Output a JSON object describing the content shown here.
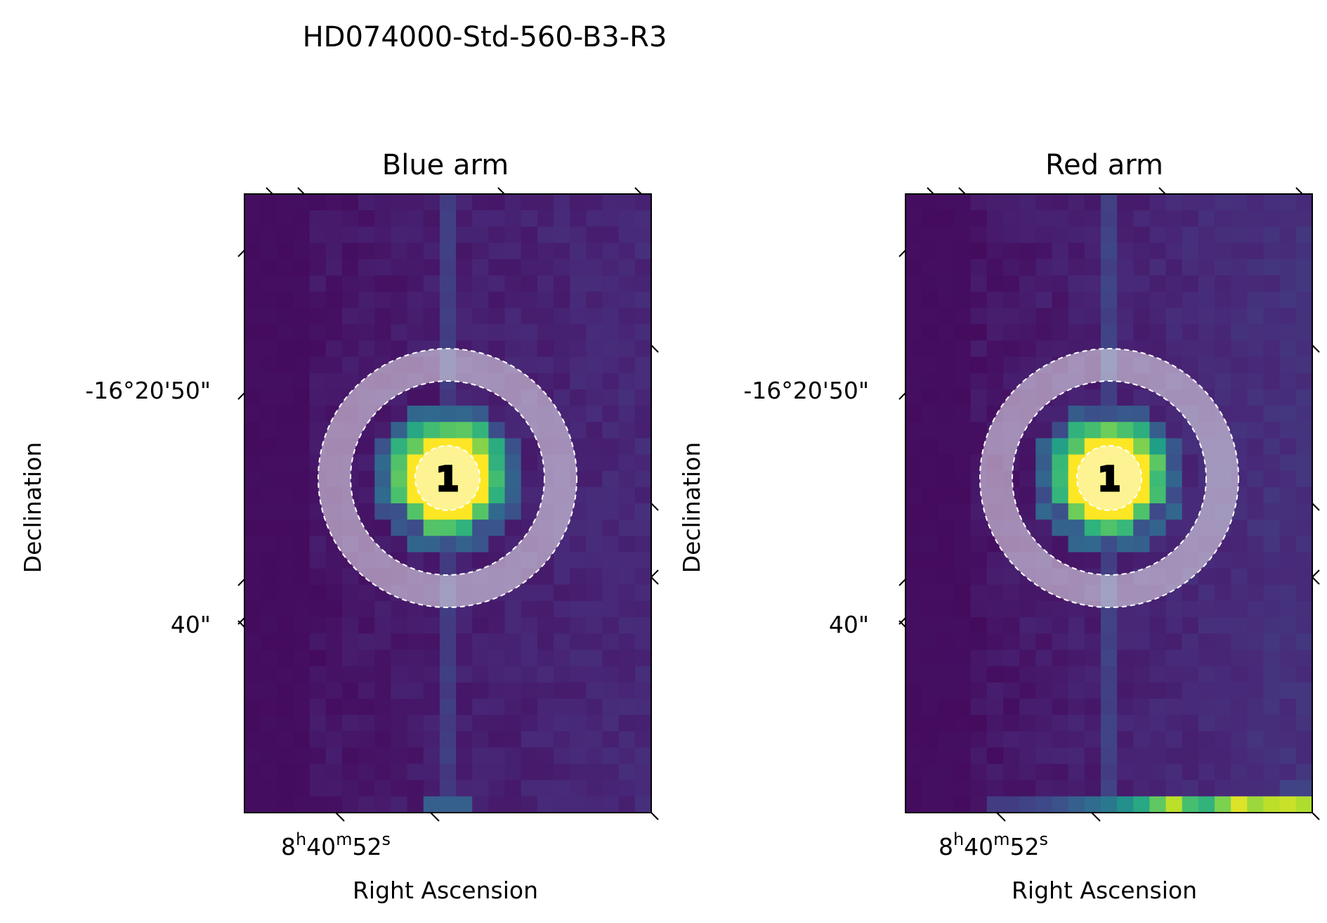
{
  "figure": {
    "title": "HD074000-Std-560-B3-R3"
  },
  "colormap": [
    "#440154",
    "#482878",
    "#3e4a89",
    "#31688e",
    "#26828e",
    "#1f9e89",
    "#35b779",
    "#6ece58",
    "#b5de2b",
    "#fde725"
  ],
  "aperture_color": "#ffffff",
  "chart_data": [
    {
      "type": "heatmap",
      "title": "Blue arm",
      "xlabel": "Right Ascension",
      "ylabel": "Declination",
      "x_tick_labels": [
        {
          "hms": "8",
          "h": "h",
          "m_val": "40",
          "m": "m",
          "s_val": "52",
          "s": "s"
        }
      ],
      "y_tick_labels": [
        "-16°20'50\"",
        "40\""
      ],
      "aperture_label": "1",
      "grid": false,
      "grid_shape": [
        38,
        25
      ],
      "feature_values": {
        "background": 0.03,
        "right_background": 0.09,
        "column_streak": 0.16,
        "star_core": 1.0,
        "star_ring": 0.55,
        "bottom_blob": 0.3
      }
    },
    {
      "type": "heatmap",
      "title": "Red arm",
      "xlabel": "Right Ascension",
      "ylabel": "Declination",
      "x_tick_labels": [
        {
          "hms": "8",
          "h": "h",
          "m_val": "40",
          "m": "m",
          "s_val": "52",
          "s": "s"
        }
      ],
      "y_tick_labels": [
        "-16°20'50\"",
        "40\""
      ],
      "aperture_label": "1",
      "grid": false,
      "grid_shape": [
        38,
        25
      ],
      "feature_values": {
        "background": 0.03,
        "right_background": 0.12,
        "column_streak": 0.18,
        "star_core": 1.0,
        "star_ring": 0.55,
        "bottom_row": [
          0.18,
          0.18,
          0.2,
          0.22,
          0.25,
          0.3,
          0.35,
          0.4,
          0.5,
          0.6,
          0.75,
          0.9,
          0.7,
          0.65,
          0.8,
          0.95,
          0.85,
          0.9,
          0.92,
          0.88,
          0.95
        ]
      }
    }
  ]
}
